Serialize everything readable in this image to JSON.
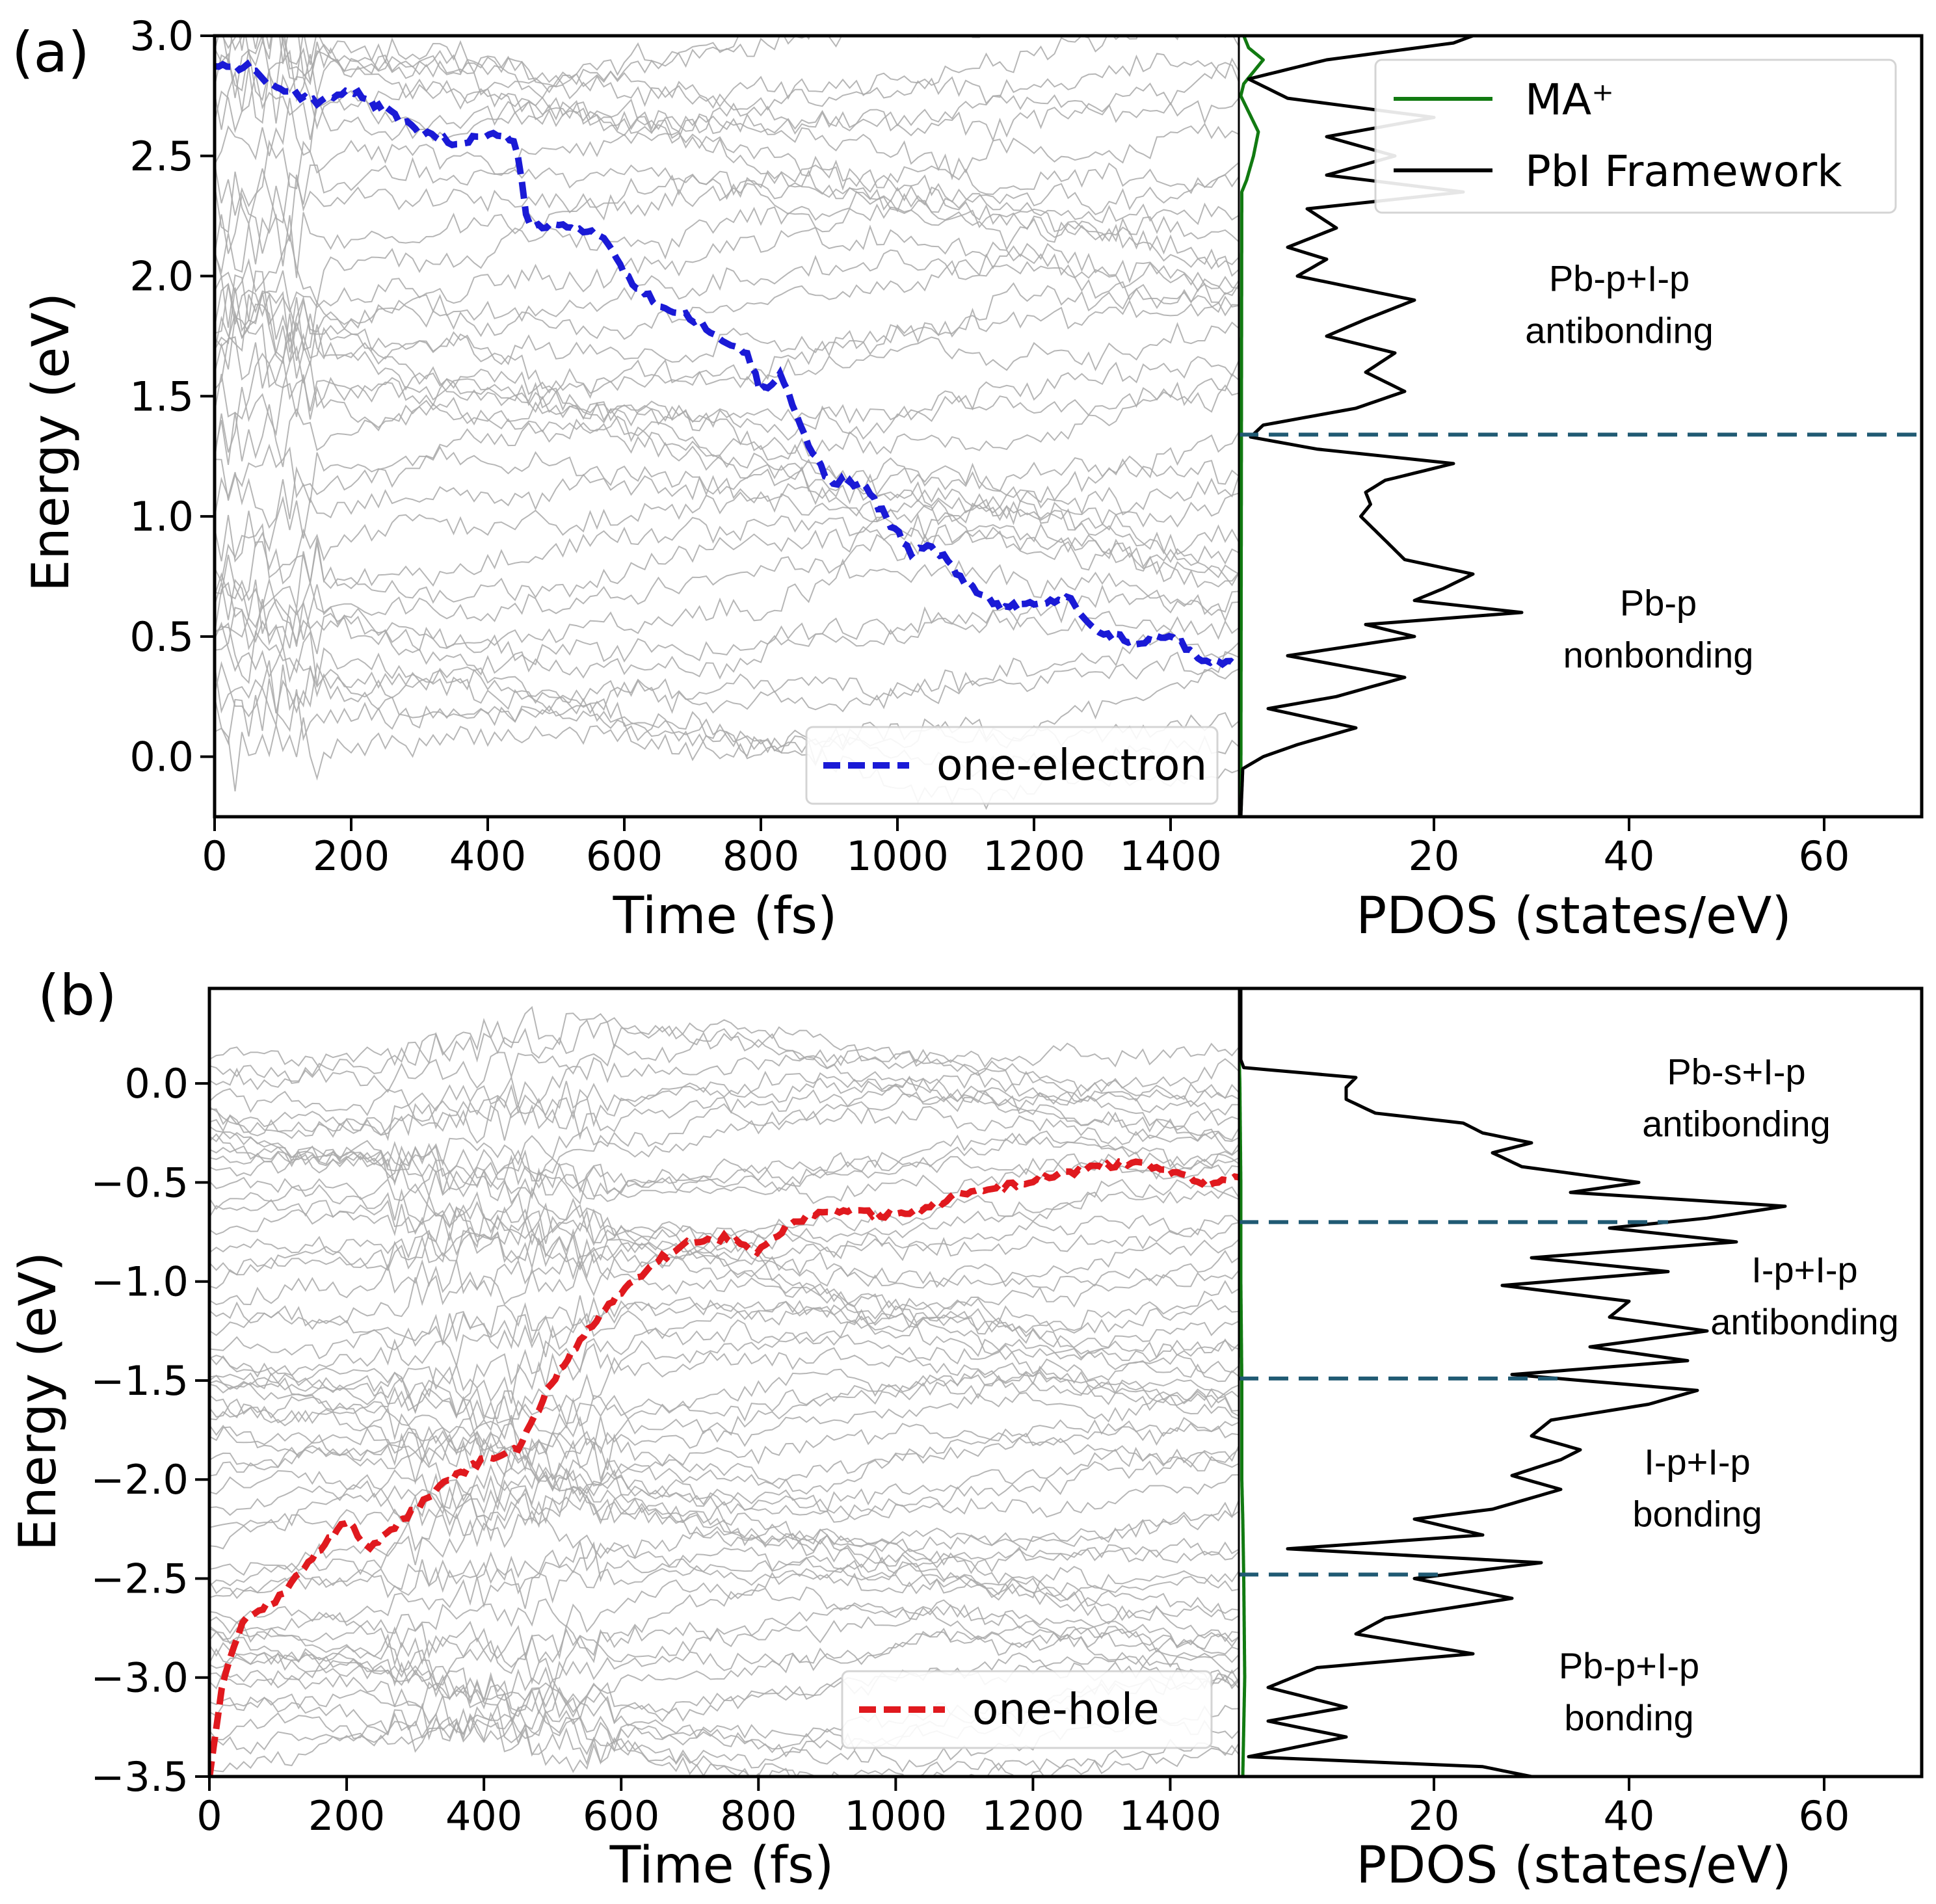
{
  "chart_data": [
    {
      "panel": "(a)",
      "type": "line",
      "xlabel": "Time (fs)",
      "ylabel": "Energy (eV)",
      "xlim": [
        0,
        1500
      ],
      "ylim": [
        -0.25,
        3.0
      ],
      "xticks": [
        "0",
        "200",
        "400",
        "600",
        "800",
        "1000",
        "1200",
        "1400"
      ],
      "yticks": [
        "0.0",
        "0.5",
        "1.0",
        "1.5",
        "2.0",
        "2.5",
        "3.0"
      ],
      "legend_position": "bottom-right",
      "background_levels": {
        "count": 40,
        "min": 0.0,
        "max": 3.05,
        "color": "#a9a9a9"
      },
      "series": [
        {
          "name": "one-electron",
          "color": "#1a1ad6",
          "style": "dashed",
          "x": [
            0,
            50,
            100,
            150,
            200,
            250,
            300,
            350,
            400,
            440,
            450,
            460,
            500,
            550,
            580,
            600,
            650,
            700,
            750,
            780,
            800,
            830,
            860,
            900,
            950,
            1000,
            1020,
            1050,
            1100,
            1150,
            1200,
            1250,
            1300,
            1350,
            1400,
            1450,
            1500
          ],
          "y": [
            2.88,
            2.87,
            2.76,
            2.73,
            2.77,
            2.69,
            2.6,
            2.55,
            2.59,
            2.57,
            2.38,
            2.2,
            2.21,
            2.19,
            2.13,
            2.0,
            1.88,
            1.82,
            1.72,
            1.68,
            1.52,
            1.6,
            1.35,
            1.15,
            1.13,
            0.93,
            0.85,
            0.88,
            0.73,
            0.62,
            0.63,
            0.66,
            0.51,
            0.48,
            0.5,
            0.4,
            0.39
          ]
        }
      ],
      "pdos": {
        "xlabel": "PDOS (states/eV)",
        "xlim": [
          0,
          70
        ],
        "xticks": [
          "20",
          "40",
          "60"
        ],
        "legend_position": "top-right",
        "series": [
          {
            "name": "MA⁺",
            "color": "#117a11",
            "energy": [
              -0.25,
              2.35,
              2.4,
              2.5,
              2.6,
              2.7,
              2.75,
              2.8,
              2.9,
              2.95,
              3.0
            ],
            "dos": [
              0.2,
              0.3,
              0.8,
              1.5,
              2.0,
              0.8,
              0.2,
              0.5,
              2.5,
              1.0,
              0.5
            ]
          },
          {
            "name": "PbI Framework",
            "color": "#000000",
            "energy": [
              -0.25,
              -0.05,
              0.0,
              0.05,
              0.12,
              0.2,
              0.25,
              0.33,
              0.42,
              0.5,
              0.55,
              0.6,
              0.65,
              0.7,
              0.76,
              0.82,
              0.9,
              1.0,
              1.05,
              1.1,
              1.15,
              1.22,
              1.28,
              1.33,
              1.38,
              1.45,
              1.52,
              1.6,
              1.68,
              1.75,
              1.82,
              1.9,
              2.0,
              2.07,
              2.12,
              2.2,
              2.28,
              2.35,
              2.42,
              2.5,
              2.58,
              2.66,
              2.74,
              2.82,
              2.9,
              2.97,
              3.0
            ],
            "dos": [
              0.2,
              0.4,
              2.5,
              6.0,
              12.0,
              3.0,
              10.0,
              17.0,
              5.0,
              18.0,
              13.0,
              29.0,
              18.0,
              21.0,
              24.0,
              17.0,
              15.0,
              12.5,
              13.5,
              13.0,
              15.0,
              22.0,
              8.0,
              1.2,
              2.5,
              12.0,
              17.0,
              13.0,
              16.0,
              9.0,
              13.0,
              18.0,
              6.0,
              9.0,
              5.0,
              10.0,
              7.0,
              23.0,
              9.0,
              16.0,
              9.0,
              20.0,
              5.0,
              1.0,
              9.0,
              22.0,
              24.0
            ]
          }
        ],
        "dividers": [
          1.34
        ],
        "regions": [
          {
            "line1": "Pb-p+I-p",
            "line2": "antibonding",
            "energy": 1.9,
            "pdos_x": 39
          },
          {
            "line1": "Pb-p",
            "line2": "nonbonding",
            "energy": 0.55,
            "pdos_x": 43
          }
        ]
      }
    },
    {
      "panel": "(b)",
      "type": "line",
      "xlabel": "Time (fs)",
      "ylabel": "Energy (eV)",
      "xlim": [
        0,
        1500
      ],
      "ylim": [
        -3.5,
        0.48
      ],
      "xticks": [
        "0",
        "200",
        "400",
        "600",
        "800",
        "1000",
        "1200",
        "1400"
      ],
      "yticks": [
        "0.0",
        "−0.5",
        "−1.0",
        "−1.5",
        "−2.0",
        "−2.5",
        "−3.0",
        "−3.5"
      ],
      "legend_position": "bottom-right",
      "background_levels": {
        "count": 60,
        "min": -3.45,
        "max": 0.2,
        "color": "#a9a9a9"
      },
      "series": [
        {
          "name": "one-hole",
          "color": "#e0191e",
          "style": "dashed",
          "x": [
            0,
            20,
            50,
            100,
            150,
            200,
            230,
            300,
            350,
            400,
            450,
            500,
            550,
            600,
            650,
            700,
            750,
            800,
            850,
            900,
            950,
            1000,
            1050,
            1100,
            1150,
            1200,
            1250,
            1300,
            1350,
            1400,
            1450,
            1500
          ],
          "y": [
            -3.5,
            -3.0,
            -2.7,
            -2.6,
            -2.4,
            -2.2,
            -2.35,
            -2.15,
            -2.0,
            -1.9,
            -1.85,
            -1.5,
            -1.25,
            -1.05,
            -0.9,
            -0.8,
            -0.78,
            -0.85,
            -0.7,
            -0.65,
            -0.65,
            -0.67,
            -0.62,
            -0.55,
            -0.52,
            -0.5,
            -0.45,
            -0.42,
            -0.4,
            -0.45,
            -0.5,
            -0.48
          ]
        }
      ],
      "pdos": {
        "xlabel": "PDOS (states/eV)",
        "xlim": [
          0,
          70
        ],
        "xticks": [
          "20",
          "40",
          "60"
        ],
        "series": [
          {
            "name": "MA⁺",
            "color": "#117a11",
            "energy": [
              -3.5,
              -3.0,
              -2.5,
              -2.2,
              -2.0,
              -1.5,
              -1.0,
              -0.5,
              0.0,
              0.2
            ],
            "dos": [
              0.4,
              0.6,
              0.5,
              0.4,
              0.3,
              0.3,
              0.2,
              0.2,
              0.1,
              0.0
            ]
          },
          {
            "name": "PbI Framework",
            "color": "#000000",
            "energy": [
              -3.5,
              -3.45,
              -3.4,
              -3.3,
              -3.22,
              -3.15,
              -3.05,
              -2.95,
              -2.88,
              -2.78,
              -2.7,
              -2.6,
              -2.5,
              -2.42,
              -2.35,
              -2.28,
              -2.2,
              -2.15,
              -2.05,
              -1.98,
              -1.9,
              -1.85,
              -1.78,
              -1.7,
              -1.62,
              -1.55,
              -1.47,
              -1.4,
              -1.33,
              -1.25,
              -1.18,
              -1.1,
              -1.02,
              -0.95,
              -0.88,
              -0.8,
              -0.73,
              -0.68,
              -0.62,
              -0.55,
              -0.5,
              -0.42,
              -0.35,
              -0.3,
              -0.25,
              -0.2,
              -0.15,
              -0.08,
              -0.02,
              0.03,
              0.08,
              0.12
            ],
            "dos": [
              30.0,
              25.0,
              1.0,
              11.0,
              3.0,
              11.0,
              3.0,
              8.0,
              24.0,
              12.0,
              15.0,
              28.0,
              18.0,
              31.0,
              5.0,
              25.0,
              18.0,
              26.0,
              33.0,
              28.0,
              33.0,
              35.0,
              30.0,
              32.0,
              42.0,
              47.0,
              28.0,
              46.0,
              36.0,
              48.0,
              38.0,
              40.0,
              27.0,
              44.0,
              30.0,
              51.0,
              38.0,
              48.0,
              56.0,
              34.0,
              41.0,
              29.0,
              26.0,
              30.0,
              25.0,
              23.0,
              14.0,
              11.0,
              11.0,
              12.0,
              0.5,
              0.2
            ]
          }
        ],
        "dividers": [
          -0.7,
          -1.49,
          -2.48
        ],
        "regions": [
          {
            "line1": "Pb-s+I-p",
            "line2": "antibonding",
            "energy": -0.05,
            "pdos_x": 51
          },
          {
            "line1": "I-p+I-p",
            "line2": "antibonding",
            "energy": -1.05,
            "pdos_x": 58
          },
          {
            "line1": "I-p+I-p",
            "line2": "bonding",
            "energy": -2.02,
            "pdos_x": 47
          },
          {
            "line1": "Pb-p+I-p",
            "line2": "bonding",
            "energy": -3.05,
            "pdos_x": 40
          }
        ]
      }
    }
  ]
}
